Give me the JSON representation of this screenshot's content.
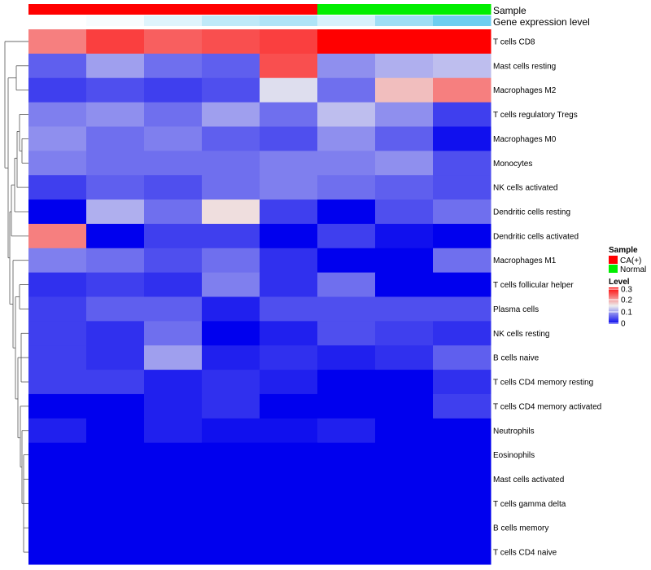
{
  "chart_data": {
    "type": "heatmap",
    "rows": [
      "T cells CD8",
      "Mast cells resting",
      "Macrophages M2",
      "T cells regulatory  Tregs",
      "Macrophages M0",
      "Monocytes",
      "NK cells activated",
      "Dendritic cells resting",
      "Dendritic cells activated",
      "Macrophages M1",
      "T cells follicular helper",
      "Plasma cells",
      "NK cells resting",
      "B cells naive",
      "T cells CD4 memory resting",
      "T cells CD4 memory activated",
      "Neutrophils",
      "Eosinophils",
      "Mast cells activated",
      "T cells gamma delta",
      "B cells memory",
      "T cells CD4 naive"
    ],
    "columns": 8,
    "values": [
      [
        0.22,
        0.26,
        0.24,
        0.25,
        0.26,
        0.3,
        0.3,
        0.3
      ],
      [
        0.06,
        0.1,
        0.07,
        0.06,
        0.25,
        0.09,
        0.11,
        0.12
      ],
      [
        0.04,
        0.05,
        0.04,
        0.05,
        0.14,
        0.07,
        0.18,
        0.22
      ],
      [
        0.08,
        0.09,
        0.07,
        0.1,
        0.07,
        0.12,
        0.09,
        0.04
      ],
      [
        0.09,
        0.07,
        0.08,
        0.06,
        0.05,
        0.09,
        0.06,
        0.01
      ],
      [
        0.08,
        0.07,
        0.07,
        0.07,
        0.08,
        0.08,
        0.09,
        0.05
      ],
      [
        0.04,
        0.06,
        0.05,
        0.07,
        0.08,
        0.07,
        0.06,
        0.05
      ],
      [
        0.0,
        0.11,
        0.07,
        0.16,
        0.04,
        0.0,
        0.05,
        0.07
      ],
      [
        0.22,
        0.0,
        0.04,
        0.04,
        0.0,
        0.04,
        0.01,
        0.0
      ],
      [
        0.08,
        0.07,
        0.05,
        0.07,
        0.03,
        0.0,
        0.0,
        0.07
      ],
      [
        0.03,
        0.04,
        0.03,
        0.08,
        0.03,
        0.07,
        0.0,
        0.0
      ],
      [
        0.04,
        0.06,
        0.06,
        0.02,
        0.05,
        0.05,
        0.05,
        0.05
      ],
      [
        0.04,
        0.03,
        0.07,
        0.0,
        0.02,
        0.05,
        0.04,
        0.03
      ],
      [
        0.04,
        0.03,
        0.1,
        0.02,
        0.03,
        0.02,
        0.03,
        0.06
      ],
      [
        0.04,
        0.04,
        0.02,
        0.03,
        0.02,
        0.0,
        0.0,
        0.03
      ],
      [
        0.0,
        0.0,
        0.02,
        0.03,
        0.0,
        0.0,
        0.0,
        0.04
      ],
      [
        0.02,
        0.0,
        0.02,
        0.01,
        0.01,
        0.02,
        0.0,
        0.0
      ],
      [
        0.0,
        0.0,
        0.0,
        0.0,
        0.0,
        0.0,
        0.0,
        0.0
      ],
      [
        0.0,
        0.0,
        0.0,
        0.0,
        0.0,
        0.0,
        0.0,
        0.0
      ],
      [
        0.0,
        0.0,
        0.0,
        0.0,
        0.0,
        0.0,
        0.0,
        0.0
      ],
      [
        0.0,
        0.0,
        0.0,
        0.0,
        0.0,
        0.0,
        0.0,
        0.0
      ],
      [
        0.0,
        0.0,
        0.0,
        0.0,
        0.0,
        0.0,
        0.0,
        0.0
      ]
    ],
    "sample_groups": [
      "CA(+)",
      "CA(+)",
      "CA(+)",
      "CA(+)",
      "CA(+)",
      "Normal",
      "Normal",
      "Normal"
    ],
    "gene_expression_level": [
      0.0,
      0.05,
      0.2,
      0.4,
      0.5,
      0.25,
      0.6,
      0.9
    ],
    "annotation_labels": {
      "sample": "Sample",
      "gene": "Gene expression level"
    },
    "legend": {
      "sample_title": "Sample",
      "sample_entries": [
        {
          "label": "CA(+)",
          "color": "#ff0000"
        },
        {
          "label": "Normal",
          "color": "#00ee00"
        }
      ],
      "level_title": "Level",
      "level_ticks": [
        "0.3",
        "0.2",
        "0.1",
        "0"
      ],
      "level_tick_values": [
        0.3,
        0.2,
        0.1,
        0
      ]
    },
    "color_scale": {
      "low": "#0000ee",
      "mid": "#eeeeee",
      "high": "#ff0000",
      "min": 0,
      "mid_value": 0.15,
      "max": 0.3
    },
    "gene_color_scale": {
      "low": "#ffffff",
      "high": "#5ec8ee"
    },
    "dendrogram": "row-clustering"
  }
}
